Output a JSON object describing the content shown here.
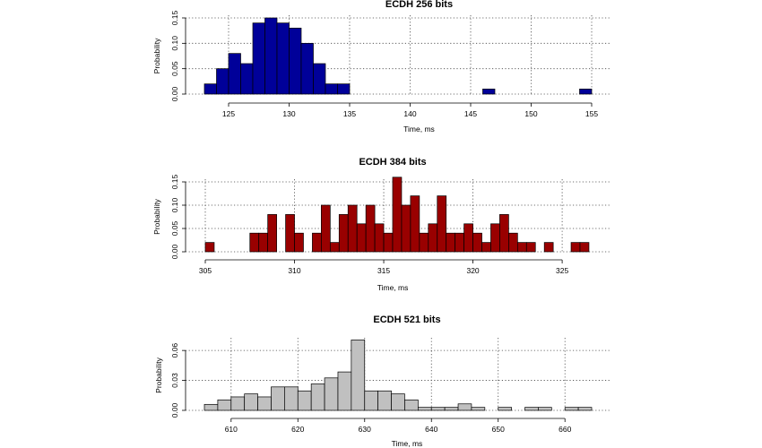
{
  "chart_data": [
    {
      "type": "bar",
      "title": "ECDH 256 bits",
      "xlabel": "Time, ms",
      "ylabel": "Probability",
      "xlim": [
        123,
        155
      ],
      "ylim": [
        0,
        0.15
      ],
      "xticks": [
        125,
        130,
        135,
        140,
        145,
        150,
        155
      ],
      "yticks": [
        0.0,
        0.05,
        0.1,
        0.15
      ],
      "ytick_labels": [
        "0.00",
        "0.05",
        "0.10",
        "0.15"
      ],
      "grid": true,
      "color": "#000099",
      "bin_start": 123,
      "bin_width": 1,
      "values": [
        0.02,
        0.05,
        0.08,
        0.06,
        0.14,
        0.15,
        0.14,
        0.13,
        0.1,
        0.06,
        0.02,
        0.02,
        0,
        0,
        0,
        0,
        0,
        0,
        0,
        0,
        0,
        0,
        0,
        0.01,
        0,
        0,
        0,
        0,
        0,
        0,
        0,
        0.01
      ]
    },
    {
      "type": "bar",
      "title": "ECDH 384 bits",
      "xlabel": "Time, ms",
      "ylabel": "Probability",
      "xlim": [
        305,
        326
      ],
      "ylim": [
        0,
        0.15
      ],
      "xticks": [
        305,
        310,
        315,
        320,
        325
      ],
      "yticks": [
        0.0,
        0.05,
        0.1,
        0.15
      ],
      "ytick_labels": [
        "0.00",
        "0.05",
        "0.10",
        "0.15"
      ],
      "grid": true,
      "color": "#990000",
      "bin_start": 305,
      "bin_width": 0.5,
      "values": [
        0.02,
        0,
        0,
        0,
        0,
        0.04,
        0.04,
        0.08,
        0,
        0.08,
        0.04,
        0,
        0.04,
        0.1,
        0.02,
        0.08,
        0.1,
        0.06,
        0.1,
        0.06,
        0.04,
        0.16,
        0.1,
        0.12,
        0.04,
        0.06,
        0.12,
        0.04,
        0.04,
        0.06,
        0.04,
        0.02,
        0.06,
        0.08,
        0.04,
        0.02,
        0.02,
        0,
        0.02,
        0,
        0,
        0.02,
        0.02
      ]
    },
    {
      "type": "bar",
      "title": "ECDH 521 bits",
      "xlabel": "Time, ms",
      "ylabel": "Probability",
      "xlim": [
        606,
        664
      ],
      "ylim": [
        0,
        0.07
      ],
      "xticks": [
        610,
        620,
        630,
        640,
        650,
        660
      ],
      "yticks": [
        0.0,
        0.03,
        0.06
      ],
      "ytick_labels": [
        "0.00",
        "0.03",
        "0.06"
      ],
      "grid": true,
      "color": "#c0c0c0",
      "bin_start": 606,
      "bin_width": 2,
      "values": [
        0.006,
        0.0105,
        0.0135,
        0.0165,
        0.0135,
        0.0235,
        0.0235,
        0.0195,
        0.0265,
        0.0325,
        0.0385,
        0.0705,
        0.0195,
        0.0195,
        0.0165,
        0.0105,
        0.003,
        0.003,
        0.003,
        0.0065,
        0.003,
        0,
        0.003,
        0,
        0.003,
        0.003,
        0,
        0.003,
        0.003
      ]
    }
  ]
}
